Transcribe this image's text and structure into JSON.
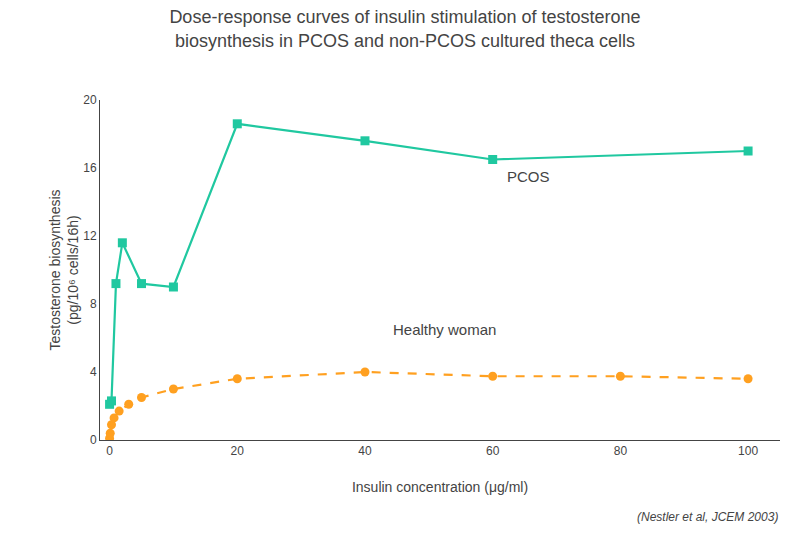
{
  "chart_data": {
    "type": "line",
    "title": "Dose-response curves of insulin stimulation of testosterone\nbiosynthesis in PCOS and non-PCOS cultured theca cells",
    "x_label": "Insulin concentration (μg/ml)",
    "y_label": "Testosterone biosynthesis\n(pg/10⁶ cells/16h)",
    "series": [
      {
        "name": "PCOS",
        "color": "#20C8A0",
        "marker": "square",
        "line_style": "solid",
        "x": [
          0.0,
          0.3,
          1.0,
          2.0,
          5.0,
          10.0,
          20.0,
          40.0,
          60.0,
          100.0
        ],
        "values": [
          2.1,
          2.3,
          9.2,
          11.6,
          9.2,
          9.0,
          18.6,
          17.6,
          16.5,
          17.0
        ]
      },
      {
        "name": "Healthy woman",
        "color": "#FFA020",
        "marker": "circle",
        "line_style": "dashed",
        "x": [
          0.0,
          0.1,
          0.3,
          0.7,
          1.5,
          3.0,
          5.0,
          10.0,
          20.0,
          40.0,
          60.0,
          80.0,
          100.0
        ],
        "values": [
          0.1,
          0.4,
          0.9,
          1.3,
          1.7,
          2.1,
          2.5,
          3.0,
          3.6,
          4.0,
          3.75,
          3.75,
          3.6
        ]
      }
    ],
    "annotations": [
      {
        "text": "PCOS",
        "x": 62,
        "y": 15.5
      },
      {
        "text": "Healthy woman",
        "x": 44,
        "y": 6.5
      }
    ],
    "caption": "(Nestler et al, JCEM 2003)",
    "xlim": [
      -1.5,
      105
    ],
    "xticks": [
      0,
      20,
      40,
      60,
      80,
      100
    ],
    "ylim": [
      0,
      20
    ],
    "yticks": [
      0,
      4,
      8,
      12,
      16,
      20
    ],
    "grid": false
  }
}
